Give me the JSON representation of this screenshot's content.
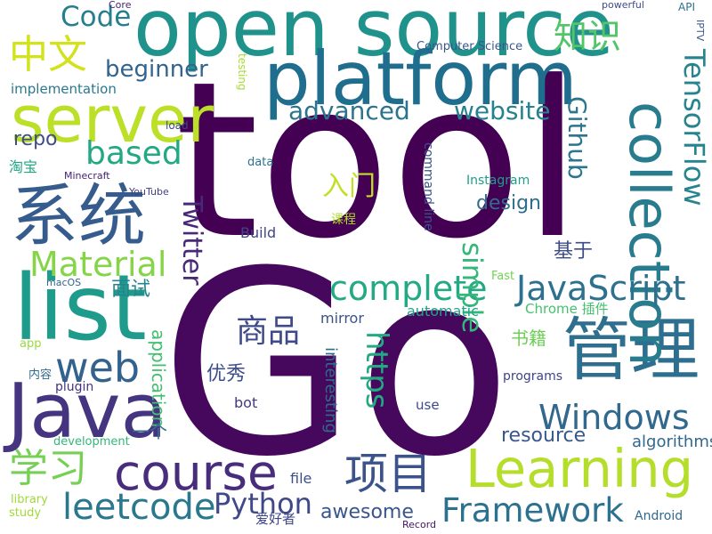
{
  "words": [
    {
      "t": "tool",
      "c": "#440154"
    },
    {
      "t": "Go",
      "c": "#46085c"
    },
    {
      "t": "open source",
      "c": "#20928c"
    },
    {
      "t": "platform",
      "c": "#1f6e8e"
    },
    {
      "t": "list",
      "c": "#1e9b8a"
    },
    {
      "t": "Java",
      "c": "#45347f"
    },
    {
      "t": "server",
      "c": "#bcdf27"
    },
    {
      "t": "系统",
      "c": "#365c8d"
    },
    {
      "t": "管理",
      "c": "#2e6e8e"
    },
    {
      "t": "Learning",
      "c": "#b5de2b"
    },
    {
      "t": "collection",
      "c": "#287c8e"
    },
    {
      "t": "course",
      "c": "#472d7b"
    },
    {
      "t": "Windows",
      "c": "#31688e"
    },
    {
      "t": "JavaScript",
      "c": "#2d718e"
    },
    {
      "t": "TensorFlow",
      "c": "#25848e"
    },
    {
      "t": "项目",
      "c": "#3b528b"
    },
    {
      "t": "Framework",
      "c": "#2c728e"
    },
    {
      "t": "Material",
      "c": "#86d549"
    },
    {
      "t": "leetcode",
      "c": "#2a788e"
    },
    {
      "t": "complete",
      "c": "#23a983"
    },
    {
      "t": "simple",
      "c": "#35b779"
    },
    {
      "t": "web",
      "c": "#33638d"
    },
    {
      "t": "学习",
      "c": "#75d054"
    },
    {
      "t": "Python",
      "c": "#3f4889"
    },
    {
      "t": "中文",
      "c": "#d2e21b"
    },
    {
      "t": "Twitter",
      "c": "#482878"
    },
    {
      "t": "https",
      "c": "#24aa83"
    },
    {
      "t": "Code",
      "c": "#277f8e"
    },
    {
      "t": "based",
      "c": "#22a884"
    },
    {
      "t": "Github",
      "c": "#2a768e"
    },
    {
      "t": "商品",
      "c": "#3e4a89"
    },
    {
      "t": "知识",
      "c": "#52c569"
    },
    {
      "t": "awesome",
      "c": "#39568c"
    },
    {
      "t": "application",
      "c": "#44bf70"
    },
    {
      "t": "website",
      "c": "#26828e"
    },
    {
      "t": "advanced",
      "c": "#2b748e"
    },
    {
      "t": "beginner",
      "c": "#32648e"
    },
    {
      "t": "repo",
      "c": "#3e4c8a"
    },
    {
      "t": "design",
      "c": "#2f6c8e"
    },
    {
      "t": "resource",
      "c": "#38588c"
    },
    {
      "t": "algorithms",
      "c": "#31688e"
    },
    {
      "t": "入门",
      "c": "#c2df23"
    },
    {
      "t": "书籍",
      "c": "#6ece58"
    },
    {
      "t": "基于",
      "c": "#3d4d8a"
    },
    {
      "t": "interesting",
      "c": "#2f6b8e"
    },
    {
      "t": "面试",
      "c": "#25858e"
    },
    {
      "t": "优秀",
      "c": "#3c4f8a"
    },
    {
      "t": "implementation",
      "c": "#2a788e"
    },
    {
      "t": "Chrome 插件",
      "c": "#46c06f"
    },
    {
      "t": "programs",
      "c": "#404387"
    },
    {
      "t": "mirror",
      "c": "#3b528b"
    },
    {
      "t": "automatic",
      "c": "#20a486"
    },
    {
      "t": "Build",
      "c": "#414487"
    },
    {
      "t": "command line",
      "c": "#3a548c"
    },
    {
      "t": "一个",
      "c": "#2c718e"
    },
    {
      "t": "plugin",
      "c": "#46327e"
    },
    {
      "t": "file",
      "c": "#3d4e8a"
    },
    {
      "t": "Android",
      "c": "#30698e"
    },
    {
      "t": "development",
      "c": "#35b779"
    },
    {
      "t": "Instagram",
      "c": "#1f9e89"
    },
    {
      "t": "淘宝",
      "c": "#22a785"
    },
    {
      "t": "bot",
      "c": "#453882"
    },
    {
      "t": "爱好者",
      "c": "#3f4788"
    },
    {
      "t": "use",
      "c": "#3e4989"
    },
    {
      "t": "Computer Science",
      "c": "#39568c"
    },
    {
      "t": "library",
      "c": "#a0da39"
    },
    {
      "t": "Fast",
      "c": "#73d056"
    },
    {
      "t": "macOS",
      "c": "#30698e"
    },
    {
      "t": "app",
      "c": "#98d83e"
    },
    {
      "t": "内容",
      "c": "#2f6c8e"
    },
    {
      "t": "study",
      "c": "#a2da37"
    },
    {
      "t": "data",
      "c": "#2d708e"
    },
    {
      "t": "课程",
      "c": "#b2dd2d"
    },
    {
      "t": "Record",
      "c": "#471164"
    },
    {
      "t": "load",
      "c": "#3e4989"
    },
    {
      "t": "YouTube",
      "c": "#433e85"
    },
    {
      "t": "testing",
      "c": "#a8db34"
    },
    {
      "t": "Minecraft",
      "c": "#482173"
    },
    {
      "t": "IPTV",
      "c": "#38588c"
    },
    {
      "t": "API",
      "c": "#2c728e"
    },
    {
      "t": "Core",
      "c": "#482576"
    },
    {
      "t": "powerful",
      "c": "#3e4c8a"
    }
  ]
}
